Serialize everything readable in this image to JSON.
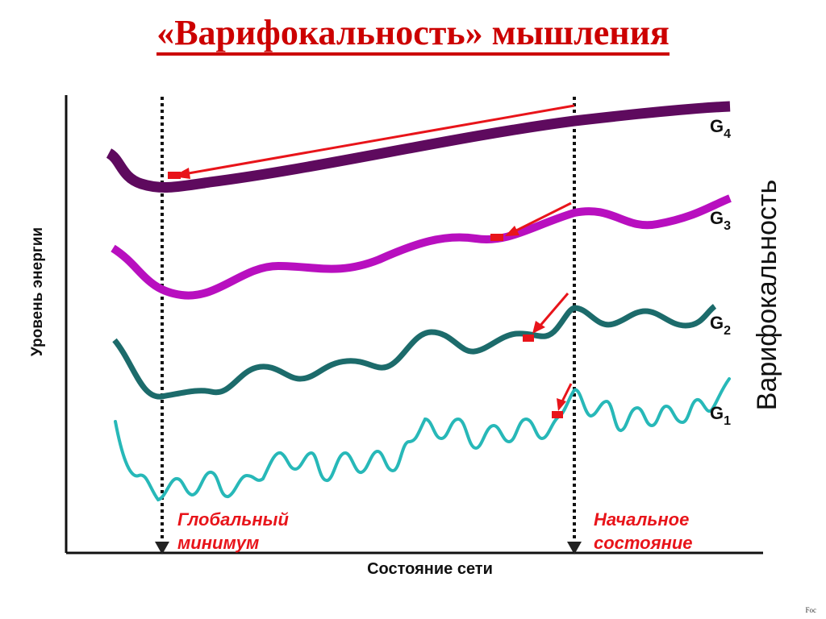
{
  "title": "«Варифокальность» мышления",
  "diagram": {
    "y_axis_label": "Уровень энергии",
    "x_axis_label": "Состояние сети",
    "side_label": "Варифокальность",
    "curves": [
      {
        "label": "G",
        "subscript": "4",
        "color": "#5e0a5e"
      },
      {
        "label": "G",
        "subscript": "3",
        "color": "#b80fbf"
      },
      {
        "label": "G",
        "subscript": "2",
        "color": "#1c6b6b"
      },
      {
        "label": "G",
        "subscript": "1",
        "color": "#27b8b8"
      }
    ],
    "marker_left": {
      "line1": "Глобальный",
      "line2": "минимум"
    },
    "marker_right": {
      "line1": "Начальное",
      "line2": "состояние"
    },
    "arrow_color": "#e8141a",
    "label_color": "#e8141a"
  },
  "corner_note": "Foc"
}
